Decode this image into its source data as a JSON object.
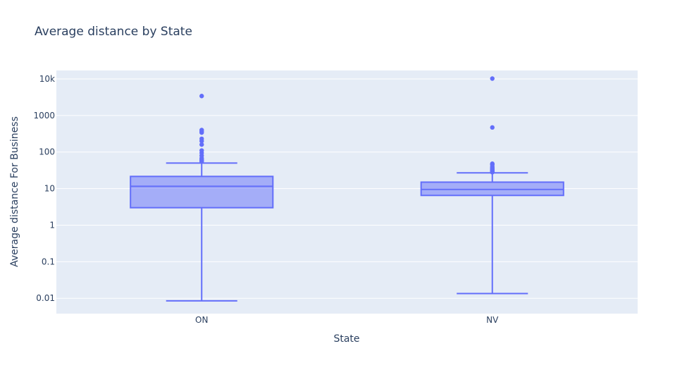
{
  "chart_data": {
    "type": "box",
    "title": "Average distance by State",
    "xlabel": "State",
    "ylabel": "Average distance For Business",
    "yscale": "log",
    "ylim": [
      0.0038,
      17000
    ],
    "yticks": [
      {
        "value": 0.01,
        "label": "0.01"
      },
      {
        "value": 0.1,
        "label": "0.1"
      },
      {
        "value": 1,
        "label": "1"
      },
      {
        "value": 10,
        "label": "10"
      },
      {
        "value": 100,
        "label": "100"
      },
      {
        "value": 1000,
        "label": "1000"
      },
      {
        "value": 10000,
        "label": "10k"
      }
    ],
    "categories": [
      "ON",
      "NV"
    ],
    "boxes": [
      {
        "category": "ON",
        "lower_fence": 0.0085,
        "q1": 3.0,
        "median": 11.5,
        "q3": 21.5,
        "upper_fence": 50,
        "outliers": [
          55,
          58,
          62,
          68,
          80,
          95,
          110,
          160,
          200,
          230,
          340,
          370,
          400,
          3400
        ]
      },
      {
        "category": "NV",
        "lower_fence": 0.0135,
        "q1": 6.5,
        "median": 9.5,
        "q3": 15,
        "upper_fence": 27,
        "outliers": [
          28,
          29,
          30,
          31,
          32,
          33,
          35,
          37,
          40,
          45,
          48,
          470,
          10200
        ]
      }
    ],
    "colors": {
      "box": "#636efa",
      "plot_bg": "#e5ecf6",
      "grid": "#ffffff",
      "text": "#2a3f5f"
    },
    "grid": true,
    "legend": "none"
  }
}
